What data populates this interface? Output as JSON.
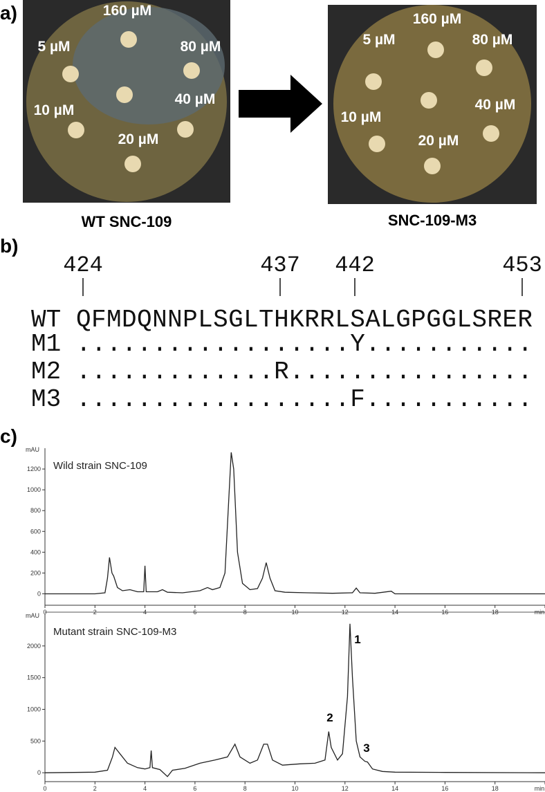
{
  "panel_a": {
    "label": "a)",
    "left_plate": {
      "caption": "WT SNC-109",
      "labels": [
        "160 µM",
        "5 µM",
        "80 µM",
        "40 µM",
        "10 µM",
        "20 µM"
      ]
    },
    "right_plate": {
      "caption": "SNC-109-M3",
      "labels": [
        "160 µM",
        "5 µM",
        "80 µM",
        "40 µM",
        "10 µM",
        "20 µM"
      ]
    }
  },
  "panel_b": {
    "label": "b)",
    "positions": [
      "424",
      "437",
      "442",
      "453"
    ],
    "rows": [
      {
        "name": "WT",
        "sequence": "QFMDQNNPLSGLTHKRRLSALGPGGLSRER"
      },
      {
        "name": "M1",
        "sequence": "..................Y..........."
      },
      {
        "name": "M2",
        "sequence": ".............R................"
      },
      {
        "name": "M3",
        "sequence": "..................F..........."
      }
    ]
  },
  "panel_c": {
    "label": "c)"
  },
  "chart_data": [
    {
      "type": "line",
      "title": "Wild strain SNC-109",
      "y_unit": "mAU",
      "color": "#222222",
      "x": [
        0,
        2,
        2.4,
        2.5,
        2.58,
        2.68,
        2.75,
        2.9,
        3.1,
        3.4,
        3.7,
        3.95,
        4.0,
        4.05,
        4.5,
        4.7,
        4.9,
        5.5,
        6.2,
        6.5,
        6.7,
        7.0,
        7.2,
        7.35,
        7.45,
        7.55,
        7.7,
        7.9,
        8.2,
        8.5,
        8.7,
        8.85,
        9.0,
        9.2,
        9.6,
        10.5,
        11.5,
        12.3,
        12.45,
        12.6,
        13.2,
        13.85,
        14.0,
        16,
        20
      ],
      "values": [
        0,
        0,
        10,
        150,
        350,
        200,
        170,
        60,
        30,
        40,
        20,
        20,
        270,
        20,
        20,
        40,
        15,
        10,
        30,
        60,
        40,
        60,
        200,
        900,
        1360,
        1200,
        400,
        100,
        40,
        50,
        150,
        300,
        150,
        30,
        15,
        10,
        5,
        10,
        55,
        10,
        5,
        25,
        0,
        0,
        0
      ],
      "xlim": [
        0,
        20
      ],
      "ylim": [
        -110,
        1400
      ],
      "xticks": [
        0,
        2,
        4,
        6,
        8,
        10,
        12,
        14,
        16,
        18,
        {
          "value": 20,
          "label": "min"
        }
      ],
      "yticks": [
        0,
        200,
        400,
        600,
        800,
        1000,
        1200
      ],
      "annotations": []
    },
    {
      "type": "line",
      "title": "Mutant strain SNC-109-M3",
      "y_unit": "mAU",
      "color": "#222222",
      "x": [
        0,
        2,
        2.5,
        2.7,
        2.8,
        3.0,
        3.3,
        3.7,
        4.0,
        4.2,
        4.25,
        4.3,
        4.6,
        4.9,
        5.1,
        5.6,
        6.2,
        6.8,
        7.3,
        7.6,
        7.8,
        8.2,
        8.5,
        8.75,
        8.9,
        9.1,
        9.5,
        10.2,
        10.8,
        11.2,
        11.35,
        11.45,
        11.7,
        11.9,
        12.1,
        12.2,
        12.3,
        12.45,
        12.6,
        12.8,
        12.9,
        13.1,
        13.5,
        14,
        16,
        20
      ],
      "values": [
        0,
        10,
        40,
        250,
        400,
        300,
        150,
        80,
        60,
        80,
        350,
        80,
        50,
        -60,
        40,
        70,
        150,
        200,
        250,
        450,
        250,
        150,
        200,
        450,
        450,
        200,
        120,
        140,
        150,
        200,
        650,
        400,
        200,
        300,
        1200,
        2350,
        1500,
        500,
        250,
        180,
        170,
        60,
        20,
        10,
        5,
        0
      ],
      "xlim": [
        0,
        20
      ],
      "ylim": [
        -140,
        2500
      ],
      "xticks": [
        0,
        2,
        4,
        6,
        8,
        10,
        12,
        14,
        16,
        18,
        {
          "value": 20,
          "label": "min"
        }
      ],
      "yticks": [
        0,
        500,
        1000,
        1500,
        2000
      ],
      "annotations": [
        "1",
        "2",
        "3"
      ]
    }
  ]
}
